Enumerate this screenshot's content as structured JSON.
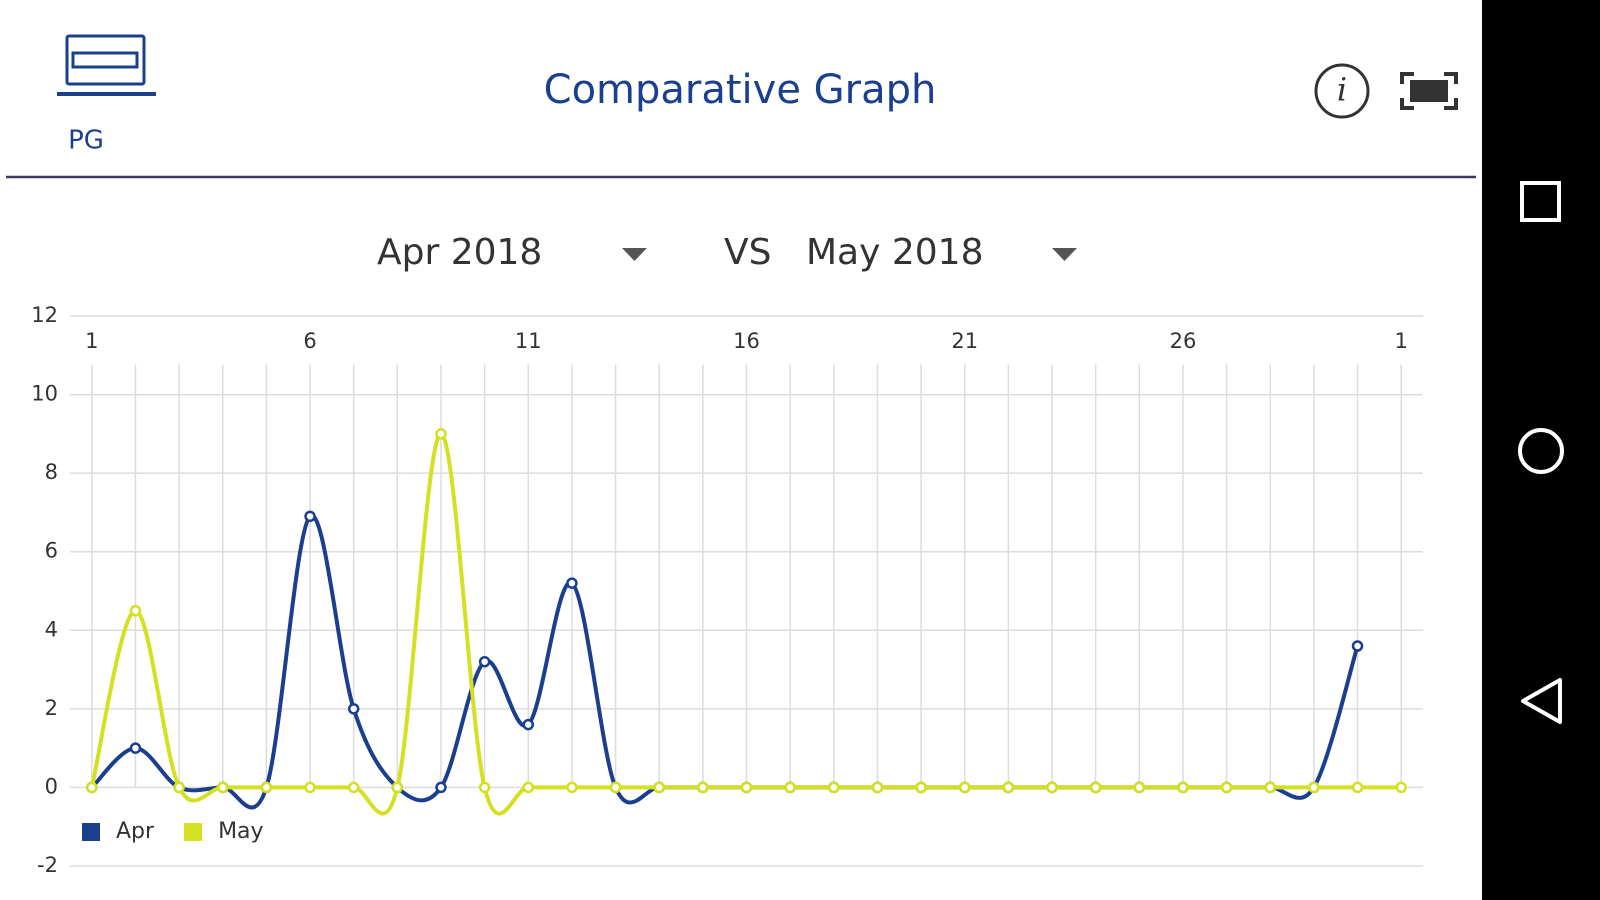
{
  "header": {
    "device_label": "PG",
    "title": "Comparative Graph"
  },
  "selectors": {
    "left": "Apr 2018",
    "vs": "VS",
    "right": "May 2018"
  },
  "chart_data": {
    "type": "line",
    "x": [
      1,
      2,
      3,
      4,
      5,
      6,
      7,
      8,
      9,
      10,
      11,
      12,
      13,
      14,
      15,
      16,
      17,
      18,
      19,
      20,
      21,
      22,
      23,
      24,
      25,
      26,
      27,
      28,
      29,
      30,
      31
    ],
    "xlim": [
      0.5,
      31.5
    ],
    "xticks": [
      1,
      6,
      11,
      16,
      21,
      26,
      {
        "value": 31,
        "label": "1"
      }
    ],
    "ylim": [
      -2,
      12
    ],
    "yticks": [
      -2,
      0,
      2,
      4,
      6,
      8,
      10,
      12
    ],
    "grid": true,
    "legend": "bottom-left",
    "series": [
      {
        "name": "Apr",
        "color": "#1b3f8f",
        "values": [
          0,
          1,
          0,
          0,
          0,
          6.9,
          2,
          0,
          0,
          3.2,
          1.6,
          5.2,
          0,
          0,
          0,
          0,
          0,
          0,
          0,
          0,
          0,
          0,
          0,
          0,
          0,
          0,
          0,
          0,
          0,
          3.6,
          null
        ]
      },
      {
        "name": "May",
        "color": "#d4e021",
        "values": [
          0,
          4.5,
          0,
          0,
          0,
          0,
          0,
          0,
          9,
          0,
          0,
          0,
          0,
          0,
          0,
          0,
          0,
          0,
          0,
          0,
          0,
          0,
          0,
          0,
          0,
          0,
          0,
          0,
          0,
          0,
          0
        ]
      }
    ]
  }
}
